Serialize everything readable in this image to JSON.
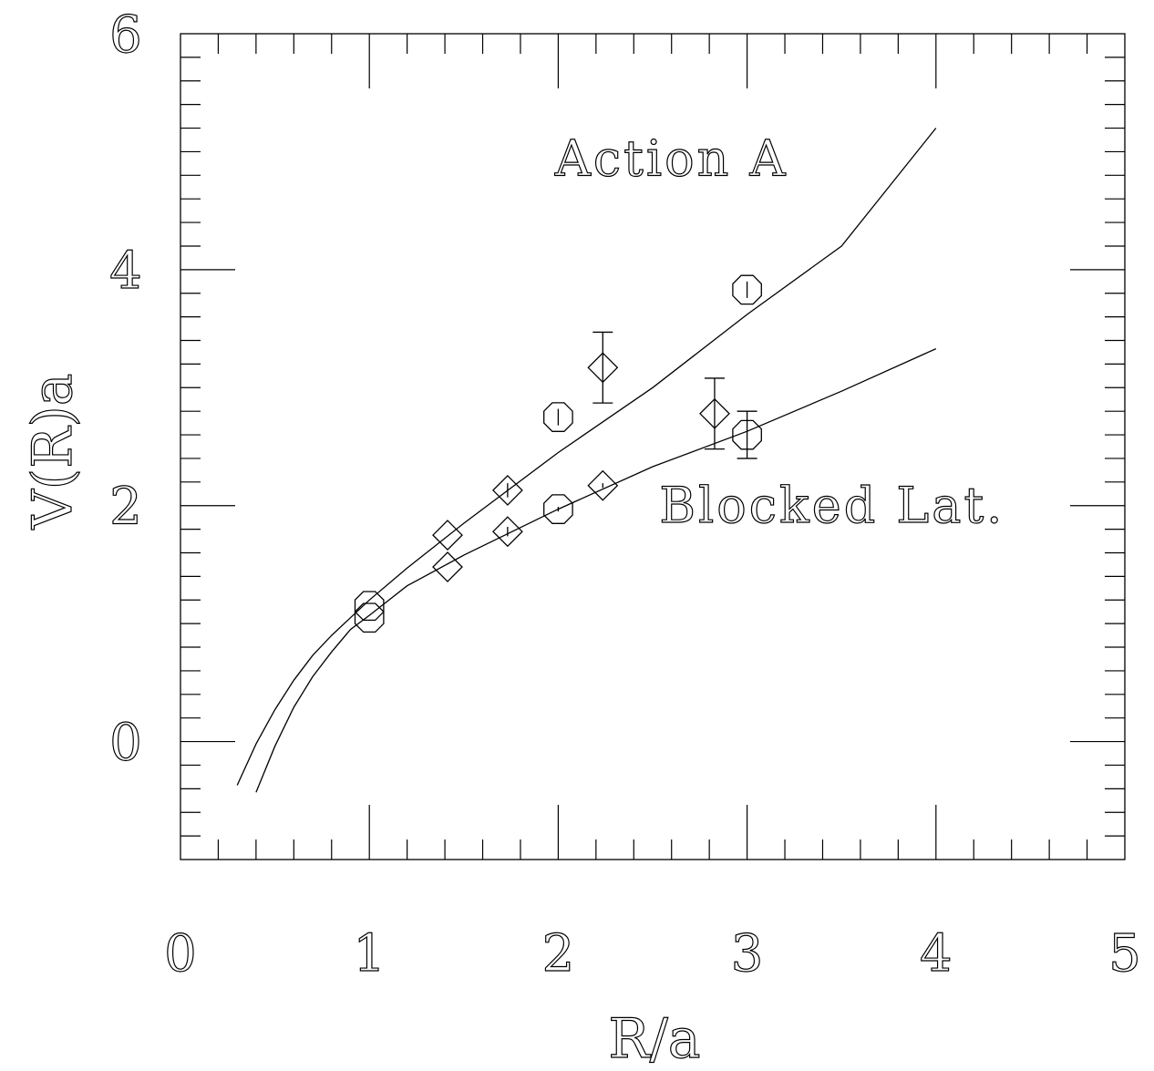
{
  "chart_data": {
    "type": "scatter",
    "title": "",
    "xlabel": "R/a",
    "ylabel": "V(R)a",
    "xlim": [
      0,
      5
    ],
    "ylim": [
      -1,
      6
    ],
    "x_major_ticks": [
      0,
      1,
      2,
      3,
      4,
      5
    ],
    "x_tick_labels": [
      "0",
      "1",
      "2",
      "3",
      "4",
      "5"
    ],
    "y_major_ticks": [
      0,
      2,
      4,
      6
    ],
    "y_tick_labels": [
      "0",
      "2",
      "4",
      "6"
    ],
    "grid": false,
    "annotations": [
      {
        "text": "Action A",
        "x": 2.6,
        "y": 4.8
      },
      {
        "text": "Blocked Lat.",
        "x": 3.45,
        "y": 1.86
      }
    ],
    "series": [
      {
        "group": "Action A",
        "marker": "octagon",
        "points": [
          {
            "x": 1.0,
            "y": 1.15,
            "err": 0.0
          },
          {
            "x": 2.0,
            "y": 2.75,
            "err": 0.07
          },
          {
            "x": 3.0,
            "y": 3.83,
            "err": 0.07
          }
        ]
      },
      {
        "group": "Action A",
        "marker": "diamond",
        "points": [
          {
            "x": 1.414,
            "y": 1.75,
            "err": 0.0
          },
          {
            "x": 1.732,
            "y": 2.13,
            "err": 0.06
          },
          {
            "x": 2.236,
            "y": 3.17,
            "err": 0.3
          }
        ]
      },
      {
        "group": "Blocked Lat.",
        "marker": "octagon",
        "points": [
          {
            "x": 1.0,
            "y": 1.05,
            "err": 0.0
          },
          {
            "x": 2.0,
            "y": 1.97,
            "err": 0.02
          },
          {
            "x": 3.0,
            "y": 2.6,
            "err": 0.2
          }
        ]
      },
      {
        "group": "Blocked Lat.",
        "marker": "diamond",
        "points": [
          {
            "x": 1.414,
            "y": 1.48,
            "err": 0.0
          },
          {
            "x": 1.732,
            "y": 1.78,
            "err": 0.04
          },
          {
            "x": 2.236,
            "y": 2.17,
            "err": 0.02
          },
          {
            "x": 2.828,
            "y": 2.78,
            "err": 0.3
          }
        ]
      }
    ],
    "fits": [
      {
        "group": "Action A",
        "points": [
          [
            0.3,
            -0.37
          ],
          [
            0.4,
            -0.02
          ],
          [
            0.5,
            0.27
          ],
          [
            0.6,
            0.52
          ],
          [
            0.7,
            0.73
          ],
          [
            0.8,
            0.9
          ],
          [
            0.9,
            1.05
          ],
          [
            1.0,
            1.2
          ],
          [
            1.2,
            1.47
          ],
          [
            1.5,
            1.85
          ],
          [
            2.0,
            2.45
          ],
          [
            2.5,
            3.0
          ],
          [
            3.0,
            3.62
          ],
          [
            3.5,
            4.2
          ],
          [
            4.0,
            5.2
          ]
        ]
      },
      {
        "group": "Blocked Lat.",
        "points": [
          [
            0.4,
            -0.43
          ],
          [
            0.5,
            -0.04
          ],
          [
            0.6,
            0.29
          ],
          [
            0.7,
            0.55
          ],
          [
            0.8,
            0.76
          ],
          [
            0.9,
            0.95
          ],
          [
            1.0,
            1.07
          ],
          [
            1.2,
            1.32
          ],
          [
            1.5,
            1.58
          ],
          [
            2.0,
            1.97
          ],
          [
            2.5,
            2.33
          ],
          [
            3.0,
            2.63
          ],
          [
            3.5,
            2.97
          ],
          [
            4.0,
            3.33
          ]
        ]
      }
    ]
  }
}
